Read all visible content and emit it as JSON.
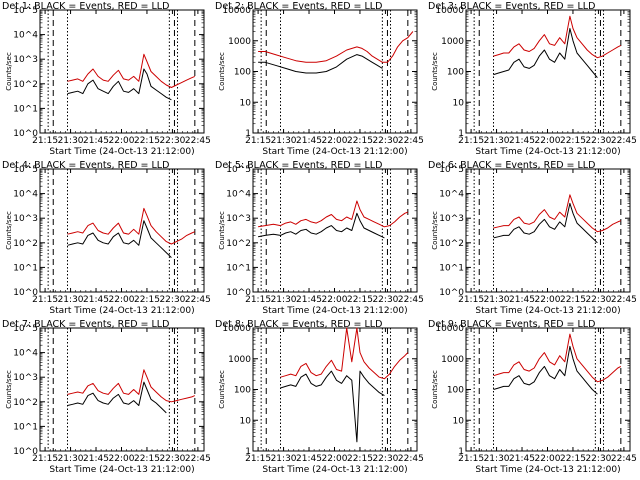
{
  "figure": {
    "x_tick_labels": [
      "21:15",
      "21:30",
      "21:45",
      "22:00",
      "22:15",
      "22:30",
      "22:45"
    ],
    "x_label": "Start Time (24-Oct-13 21:12:00)",
    "y_label": "Counts/sec"
  },
  "chart_data": [
    {
      "type": "line",
      "title": "Det 1: BLACK = Events, RED = LLD",
      "xlim": [
        21.2,
        22.81
      ],
      "ylim_log10": [
        0,
        5
      ],
      "ytick_labels": [
        "10^0",
        "10^1",
        "10^2",
        "10^3",
        "10^4",
        "10^5"
      ],
      "x": [
        21.47,
        21.52,
        21.57,
        21.62,
        21.67,
        21.72,
        21.77,
        21.82,
        21.87,
        21.92,
        21.97,
        22.02,
        22.07,
        22.12,
        22.17,
        22.22,
        22.25,
        22.29,
        22.34,
        22.39,
        22.44,
        22.49,
        22.54,
        22.59,
        22.64,
        22.69,
        22.72
      ],
      "series": [
        {
          "name": "Events",
          "color": "#000000",
          "y": [
            1.6,
            1.65,
            1.7,
            1.6,
            2.0,
            2.15,
            1.8,
            1.7,
            1.6,
            1.9,
            2.1,
            1.7,
            1.65,
            1.8,
            1.6,
            2.6,
            2.4,
            1.9,
            1.75,
            1.6,
            1.45,
            1.35,
            null,
            null,
            null,
            null,
            null
          ]
        },
        {
          "name": "LLD",
          "color": "#cc0000",
          "y": [
            2.1,
            2.15,
            2.2,
            2.1,
            2.4,
            2.6,
            2.3,
            2.15,
            2.1,
            2.35,
            2.55,
            2.2,
            2.15,
            2.3,
            2.1,
            3.2,
            2.9,
            2.5,
            2.3,
            2.1,
            1.95,
            1.85,
            1.95,
            2.05,
            2.15,
            2.25,
            2.3
          ]
        }
      ],
      "markers": {
        "dotted": [
          21.28,
          21.47,
          22.47,
          22.55
        ],
        "dashed": [
          21.33,
          22.52,
          22.72
        ]
      }
    },
    {
      "type": "line",
      "title": "Det 2: BLACK = Events, RED = LLD",
      "xlim": [
        21.2,
        22.81
      ],
      "ylim_log10": [
        0,
        4
      ],
      "ytick_labels": [
        "1",
        "10",
        "100",
        "1000",
        "10000"
      ],
      "x": [
        21.25,
        21.32,
        21.42,
        21.52,
        21.62,
        21.72,
        21.82,
        21.92,
        22.02,
        22.12,
        22.22,
        22.27,
        22.32,
        22.37,
        22.42,
        22.47,
        22.52,
        22.57,
        22.62,
        22.67,
        22.72,
        22.77
      ],
      "series": [
        {
          "name": "Events",
          "color": "#000000",
          "y": [
            2.3,
            2.3,
            2.2,
            2.1,
            2.0,
            1.95,
            1.95,
            2.0,
            2.15,
            2.4,
            2.55,
            2.5,
            2.4,
            2.3,
            2.2,
            2.1,
            null,
            null,
            null,
            null,
            null,
            null
          ]
        },
        {
          "name": "LLD",
          "color": "#cc0000",
          "y": [
            2.65,
            2.65,
            2.55,
            2.45,
            2.35,
            2.3,
            2.3,
            2.35,
            2.5,
            2.7,
            2.8,
            2.75,
            2.65,
            2.5,
            2.4,
            2.3,
            2.3,
            2.5,
            2.8,
            3.0,
            3.1,
            3.3
          ]
        }
      ],
      "markers": {
        "dotted": [
          21.28,
          21.47,
          22.47,
          22.55
        ],
        "dashed": [
          21.33,
          22.52,
          22.72
        ]
      }
    },
    {
      "type": "line",
      "title": "Det 3: BLACK = Events, RED = LLD",
      "xlim": [
        21.2,
        22.81
      ],
      "ylim_log10": [
        0,
        4
      ],
      "ytick_labels": [
        "1",
        "10",
        "100",
        "1000",
        "10000"
      ],
      "x": [
        21.47,
        21.52,
        21.57,
        21.62,
        21.67,
        21.72,
        21.77,
        21.82,
        21.87,
        21.92,
        21.97,
        22.02,
        22.07,
        22.12,
        22.17,
        22.22,
        22.25,
        22.29,
        22.34,
        22.39,
        22.44,
        22.49,
        22.54,
        22.59,
        22.64,
        22.69,
        22.72
      ],
      "series": [
        {
          "name": "Events",
          "color": "#000000",
          "y": [
            1.9,
            1.95,
            2.0,
            2.05,
            2.3,
            2.4,
            2.15,
            2.1,
            2.2,
            2.5,
            2.7,
            2.4,
            2.3,
            2.6,
            2.4,
            3.4,
            3.0,
            2.6,
            2.4,
            2.2,
            2.0,
            1.8,
            null,
            null,
            null,
            null,
            null
          ]
        },
        {
          "name": "LLD",
          "color": "#cc0000",
          "y": [
            2.5,
            2.55,
            2.6,
            2.6,
            2.8,
            2.9,
            2.7,
            2.65,
            2.75,
            3.0,
            3.2,
            2.9,
            2.85,
            3.1,
            2.9,
            3.8,
            3.4,
            3.1,
            2.9,
            2.7,
            2.55,
            2.45,
            2.5,
            2.6,
            2.7,
            2.8,
            2.85
          ]
        }
      ],
      "markers": {
        "dotted": [
          21.28,
          21.47,
          22.47,
          22.55
        ],
        "dashed": [
          21.33,
          22.52,
          22.72
        ]
      }
    },
    {
      "type": "line",
      "title": "Det 4: BLACK = Events, RED = LLD",
      "xlim": [
        21.2,
        22.81
      ],
      "ylim_log10": [
        0,
        5
      ],
      "ytick_labels": [
        "10^0",
        "10^1",
        "10^2",
        "10^3",
        "10^4",
        "10^5"
      ],
      "x": [
        21.47,
        21.52,
        21.57,
        21.62,
        21.67,
        21.72,
        21.77,
        21.82,
        21.87,
        21.92,
        21.97,
        22.02,
        22.07,
        22.12,
        22.17,
        22.22,
        22.25,
        22.29,
        22.34,
        22.39,
        22.44,
        22.49,
        22.54,
        22.59,
        22.64,
        22.69,
        22.72
      ],
      "series": [
        {
          "name": "Events",
          "color": "#000000",
          "y": [
            1.9,
            1.95,
            2.0,
            1.95,
            2.3,
            2.4,
            2.1,
            2.0,
            1.95,
            2.25,
            2.4,
            2.0,
            1.95,
            2.1,
            1.9,
            2.9,
            2.6,
            2.2,
            2.0,
            1.8,
            1.6,
            1.4,
            null,
            null,
            null,
            null,
            null
          ]
        },
        {
          "name": "LLD",
          "color": "#cc0000",
          "y": [
            2.35,
            2.4,
            2.45,
            2.4,
            2.7,
            2.8,
            2.5,
            2.4,
            2.35,
            2.6,
            2.8,
            2.4,
            2.35,
            2.55,
            2.35,
            3.4,
            3.1,
            2.7,
            2.45,
            2.25,
            2.05,
            1.95,
            2.05,
            2.15,
            2.3,
            2.4,
            2.45
          ]
        }
      ],
      "markers": {
        "dotted": [
          21.28,
          21.47,
          22.47,
          22.55
        ],
        "dashed": [
          21.33,
          22.52,
          22.72
        ]
      }
    },
    {
      "type": "line",
      "title": "Det 5: BLACK = Events, RED = LLD",
      "xlim": [
        21.2,
        22.81
      ],
      "ylim_log10": [
        0,
        5
      ],
      "ytick_labels": [
        "10^0",
        "10^1",
        "10^2",
        "10^3",
        "10^4",
        "10^5"
      ],
      "x": [
        21.25,
        21.32,
        21.4,
        21.47,
        21.52,
        21.57,
        21.62,
        21.67,
        21.72,
        21.77,
        21.82,
        21.87,
        21.92,
        21.97,
        22.02,
        22.07,
        22.12,
        22.17,
        22.22,
        22.25,
        22.29,
        22.34,
        22.39,
        22.44,
        22.49,
        22.54,
        22.59,
        22.64,
        22.69,
        22.72
      ],
      "series": [
        {
          "name": "Events",
          "color": "#000000",
          "y": [
            2.25,
            2.3,
            2.35,
            2.3,
            2.4,
            2.45,
            2.35,
            2.5,
            2.55,
            2.4,
            2.35,
            2.45,
            2.6,
            2.7,
            2.5,
            2.45,
            2.6,
            2.5,
            3.2,
            2.9,
            2.6,
            2.5,
            2.4,
            2.3,
            2.2,
            null,
            null,
            null,
            null,
            null
          ]
        },
        {
          "name": "LLD",
          "color": "#cc0000",
          "y": [
            2.65,
            2.7,
            2.75,
            2.7,
            2.8,
            2.85,
            2.75,
            2.9,
            2.95,
            2.85,
            2.8,
            2.9,
            3.05,
            3.15,
            2.95,
            2.9,
            3.05,
            2.95,
            3.7,
            3.35,
            3.05,
            2.95,
            2.85,
            2.75,
            2.65,
            2.7,
            2.85,
            3.05,
            3.2,
            3.25
          ]
        }
      ],
      "markers": {
        "dotted": [
          21.28,
          21.47,
          22.47,
          22.55
        ],
        "dashed": [
          21.33,
          22.52,
          22.72
        ]
      }
    },
    {
      "type": "line",
      "title": "Det 6: BLACK = Events, RED = LLD",
      "xlim": [
        21.2,
        22.81
      ],
      "ylim_log10": [
        0,
        5
      ],
      "ytick_labels": [
        "10^0",
        "10^1",
        "10^2",
        "10^3",
        "10^4",
        "10^5"
      ],
      "x": [
        21.47,
        21.52,
        21.57,
        21.62,
        21.67,
        21.72,
        21.77,
        21.82,
        21.87,
        21.92,
        21.97,
        22.02,
        22.07,
        22.12,
        22.17,
        22.22,
        22.25,
        22.29,
        22.34,
        22.39,
        22.44,
        22.49,
        22.54,
        22.59,
        22.64,
        22.69,
        22.72
      ],
      "series": [
        {
          "name": "Events",
          "color": "#000000",
          "y": [
            2.2,
            2.25,
            2.3,
            2.3,
            2.55,
            2.65,
            2.4,
            2.35,
            2.45,
            2.75,
            2.95,
            2.65,
            2.55,
            2.85,
            2.65,
            3.6,
            3.2,
            2.8,
            2.6,
            2.4,
            2.2,
            2.0,
            null,
            null,
            null,
            null,
            null
          ]
        },
        {
          "name": "LLD",
          "color": "#cc0000",
          "y": [
            2.6,
            2.65,
            2.7,
            2.7,
            2.95,
            3.05,
            2.8,
            2.75,
            2.85,
            3.15,
            3.35,
            3.05,
            2.95,
            3.25,
            3.05,
            3.95,
            3.6,
            3.2,
            3.0,
            2.8,
            2.6,
            2.45,
            2.5,
            2.6,
            2.75,
            2.85,
            2.9
          ]
        }
      ],
      "markers": {
        "dotted": [
          21.28,
          21.47,
          22.47,
          22.55
        ],
        "dashed": [
          21.33,
          22.52,
          22.72
        ]
      }
    },
    {
      "type": "line",
      "title": "Det 7: BLACK = Events, RED = LLD",
      "xlim": [
        21.2,
        22.81
      ],
      "ylim_log10": [
        0,
        5
      ],
      "ytick_labels": [
        "10^0",
        "10^1",
        "10^2",
        "10^3",
        "10^4",
        "10^5"
      ],
      "x": [
        21.47,
        21.52,
        21.57,
        21.62,
        21.67,
        21.72,
        21.77,
        21.82,
        21.87,
        21.92,
        21.97,
        22.02,
        22.07,
        22.12,
        22.17,
        22.22,
        22.25,
        22.29,
        22.34,
        22.39,
        22.44,
        22.49,
        22.54,
        22.59,
        22.64,
        22.69,
        22.72
      ],
      "series": [
        {
          "name": "Events",
          "color": "#000000",
          "y": [
            1.85,
            1.9,
            1.95,
            1.9,
            2.25,
            2.35,
            2.05,
            1.95,
            1.9,
            2.15,
            2.3,
            1.95,
            1.9,
            2.05,
            1.85,
            2.8,
            2.5,
            2.1,
            1.95,
            1.75,
            1.55,
            null,
            null,
            null,
            null,
            null,
            null
          ]
        },
        {
          "name": "LLD",
          "color": "#cc0000",
          "y": [
            2.3,
            2.35,
            2.4,
            2.35,
            2.65,
            2.75,
            2.45,
            2.35,
            2.3,
            2.55,
            2.75,
            2.35,
            2.3,
            2.5,
            2.3,
            3.3,
            3.0,
            2.6,
            2.4,
            2.2,
            2.05,
            2.0,
            2.05,
            2.1,
            2.15,
            2.2,
            2.25
          ]
        }
      ],
      "markers": {
        "dotted": [
          21.28,
          21.47,
          22.47,
          22.55
        ],
        "dashed": [
          21.33,
          22.52,
          22.72
        ]
      }
    },
    {
      "type": "line",
      "title": "Det 8: BLACK = Events, RED = LLD",
      "xlim": [
        21.2,
        22.81
      ],
      "ylim_log10": [
        0,
        4
      ],
      "ytick_labels": [
        "1",
        "10",
        "100",
        "1000",
        "10000"
      ],
      "x": [
        21.47,
        21.52,
        21.57,
        21.62,
        21.67,
        21.72,
        21.77,
        21.82,
        21.87,
        21.92,
        21.97,
        22.02,
        22.07,
        22.12,
        22.17,
        22.22,
        22.25,
        22.29,
        22.34,
        22.39,
        22.44,
        22.49,
        22.54,
        22.59,
        22.64,
        22.69,
        22.72
      ],
      "series": [
        {
          "name": "Events",
          "color": "#000000",
          "y": [
            2.05,
            2.1,
            2.15,
            2.1,
            2.4,
            2.5,
            2.2,
            2.1,
            2.15,
            2.4,
            2.6,
            2.3,
            2.2,
            2.45,
            2.3,
            0.3,
            2.6,
            2.4,
            2.2,
            2.05,
            1.9,
            1.8,
            null,
            null,
            null,
            null,
            null
          ]
        },
        {
          "name": "LLD",
          "color": "#cc0000",
          "y": [
            2.4,
            2.45,
            2.5,
            2.45,
            2.75,
            2.85,
            2.55,
            2.45,
            2.5,
            2.75,
            2.95,
            2.65,
            2.6,
            4.0,
            2.9,
            4.0,
            3.2,
            2.9,
            2.7,
            2.55,
            2.4,
            2.35,
            2.5,
            2.75,
            2.95,
            3.1,
            3.2
          ]
        }
      ],
      "markers": {
        "dotted": [
          21.28,
          21.47,
          22.47,
          22.55
        ],
        "dashed": [
          21.33,
          22.52,
          22.72
        ]
      }
    },
    {
      "type": "line",
      "title": "Det 9: BLACK = Events, RED = LLD",
      "xlim": [
        21.2,
        22.81
      ],
      "ylim_log10": [
        0,
        4
      ],
      "ytick_labels": [
        "1",
        "10",
        "100",
        "1000",
        "10000"
      ],
      "x": [
        21.47,
        21.52,
        21.57,
        21.62,
        21.67,
        21.72,
        21.77,
        21.82,
        21.87,
        21.92,
        21.97,
        22.02,
        22.07,
        22.12,
        22.17,
        22.22,
        22.25,
        22.29,
        22.34,
        22.39,
        22.44,
        22.49,
        22.54,
        22.59,
        22.64,
        22.69,
        22.72
      ],
      "series": [
        {
          "name": "Events",
          "color": "#000000",
          "y": [
            2.0,
            2.05,
            2.1,
            2.1,
            2.35,
            2.45,
            2.2,
            2.15,
            2.25,
            2.55,
            2.75,
            2.45,
            2.35,
            2.65,
            2.45,
            3.4,
            3.0,
            2.6,
            2.4,
            2.2,
            2.0,
            1.85,
            null,
            null,
            null,
            null,
            null
          ]
        },
        {
          "name": "LLD",
          "color": "#cc0000",
          "y": [
            2.45,
            2.5,
            2.55,
            2.55,
            2.8,
            2.9,
            2.65,
            2.6,
            2.7,
            3.0,
            3.2,
            2.9,
            2.8,
            3.1,
            2.9,
            3.8,
            3.4,
            3.0,
            2.8,
            2.6,
            2.4,
            2.25,
            2.3,
            2.4,
            2.55,
            2.7,
            2.75
          ]
        }
      ],
      "markers": {
        "dotted": [
          21.28,
          21.47,
          22.47,
          22.55
        ],
        "dashed": [
          21.33,
          22.52,
          22.72
        ]
      }
    }
  ]
}
